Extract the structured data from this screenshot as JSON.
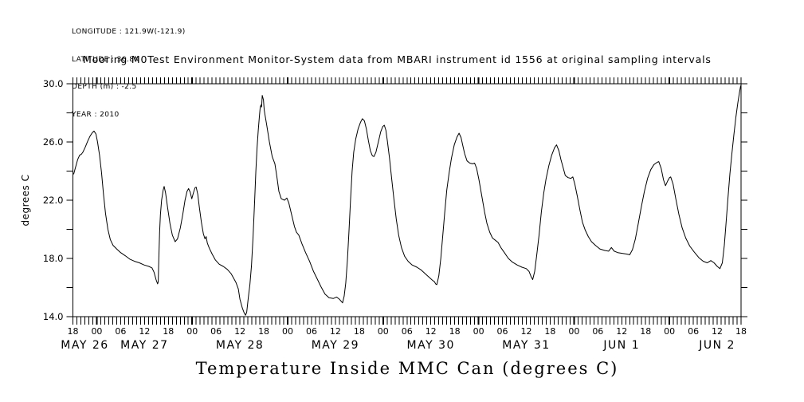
{
  "page": {
    "background": "#ffffff",
    "ink": "#000000"
  },
  "header": {
    "lines": [
      "LONGITUDE : 121.9W(-121.9)",
      "LATITUDE : 36.8N",
      "DEPTH (m) : -2.5",
      "YEAR : 2010"
    ]
  },
  "subtitle": "Mooring M0Test Environment Monitor-System data from MBARI instrument id 1556 at original sampling intervals",
  "bottom_title": "Temperature Inside MMC Can (degrees C)",
  "chart_data": {
    "type": "line",
    "title": "Temperature Inside MMC Can (degrees C)",
    "xlabel": "",
    "ylabel": "degrees C",
    "grid": false,
    "legend": "none",
    "line_color": "#000000",
    "x_axis": {
      "start": "2010-05-26 18:00",
      "end": "2010-06-02 18:00",
      "hours_total": 168,
      "minor_tick_hours": 1,
      "labeled_tick_hours": 6,
      "bold_tick_at_midnight": true,
      "hour_labels": [
        "18",
        "00",
        "06",
        "12",
        "18",
        "00",
        "06",
        "12",
        "18",
        "00",
        "06",
        "12",
        "18",
        "00",
        "06",
        "12",
        "18",
        "00",
        "06",
        "12",
        "18",
        "00",
        "06",
        "12",
        "18",
        "00",
        "06",
        "12",
        "18"
      ],
      "date_labels": [
        {
          "label": "MAY 26",
          "t_hours": 3
        },
        {
          "label": "MAY 27",
          "t_hours": 18
        },
        {
          "label": "MAY 28",
          "t_hours": 42
        },
        {
          "label": "MAY 29",
          "t_hours": 66
        },
        {
          "label": "MAY 30",
          "t_hours": 90
        },
        {
          "label": "MAY 31",
          "t_hours": 114
        },
        {
          "label": "JUN  1",
          "t_hours": 138
        },
        {
          "label": "JUN  2",
          "t_hours": 162
        }
      ]
    },
    "y_axis": {
      "label": "degrees C",
      "min": 14.0,
      "max": 30.0,
      "minor_tick": 2.0,
      "major_tick": 4.0,
      "tick_labels": [
        {
          "label": "14.0",
          "value": 14
        },
        {
          "label": "18.0",
          "value": 18
        },
        {
          "label": "22.0",
          "value": 22
        },
        {
          "label": "26.0",
          "value": 26
        },
        {
          "label": "30.0",
          "value": 30
        }
      ]
    },
    "series": [
      {
        "name": "temperature_inside_MMC_can_degC",
        "x_unit": "hours since 2010-05-26 18:00",
        "points": [
          [
            0.2,
            23.8
          ],
          [
            0.7,
            24.3
          ],
          [
            1.2,
            24.8
          ],
          [
            1.7,
            25.1
          ],
          [
            2.1,
            25.15
          ],
          [
            2.5,
            25.3
          ],
          [
            3.1,
            25.65
          ],
          [
            3.7,
            26.05
          ],
          [
            4.3,
            26.4
          ],
          [
            4.9,
            26.65
          ],
          [
            5.3,
            26.75
          ],
          [
            5.8,
            26.55
          ],
          [
            6.2,
            26.0
          ],
          [
            6.7,
            25.1
          ],
          [
            7.2,
            23.9
          ],
          [
            7.7,
            22.4
          ],
          [
            8.2,
            21.1
          ],
          [
            8.8,
            20.0
          ],
          [
            9.4,
            19.3
          ],
          [
            10.1,
            18.9
          ],
          [
            11.0,
            18.65
          ],
          [
            12.0,
            18.4
          ],
          [
            13.1,
            18.2
          ],
          [
            14.3,
            17.95
          ],
          [
            15.5,
            17.8
          ],
          [
            16.7,
            17.7
          ],
          [
            17.9,
            17.55
          ],
          [
            19.1,
            17.45
          ],
          [
            19.9,
            17.35
          ],
          [
            20.4,
            17.05
          ],
          [
            20.9,
            16.55
          ],
          [
            21.3,
            16.25
          ],
          [
            21.45,
            16.4
          ],
          [
            21.6,
            18.0
          ],
          [
            21.8,
            19.8
          ],
          [
            22.0,
            21.0
          ],
          [
            22.3,
            22.0
          ],
          [
            22.7,
            22.7
          ],
          [
            22.95,
            22.95
          ],
          [
            23.3,
            22.5
          ],
          [
            23.8,
            21.5
          ],
          [
            24.4,
            20.4
          ],
          [
            25.0,
            19.6
          ],
          [
            25.7,
            19.15
          ],
          [
            26.3,
            19.35
          ],
          [
            27.0,
            20.1
          ],
          [
            27.6,
            21.0
          ],
          [
            28.2,
            22.0
          ],
          [
            28.7,
            22.6
          ],
          [
            29.1,
            22.8
          ],
          [
            29.5,
            22.55
          ],
          [
            29.9,
            22.1
          ],
          [
            30.3,
            22.5
          ],
          [
            30.7,
            22.85
          ],
          [
            31.0,
            22.9
          ],
          [
            31.4,
            22.4
          ],
          [
            31.8,
            21.5
          ],
          [
            32.3,
            20.5
          ],
          [
            32.8,
            19.7
          ],
          [
            33.2,
            19.35
          ],
          [
            33.5,
            19.5
          ],
          [
            33.8,
            19.05
          ],
          [
            34.3,
            18.7
          ],
          [
            35.0,
            18.3
          ],
          [
            35.8,
            17.9
          ],
          [
            36.8,
            17.6
          ],
          [
            37.8,
            17.45
          ],
          [
            38.8,
            17.25
          ],
          [
            39.8,
            16.95
          ],
          [
            40.5,
            16.6
          ],
          [
            41.0,
            16.35
          ],
          [
            41.6,
            15.9
          ],
          [
            42.0,
            15.2
          ],
          [
            42.6,
            14.6
          ],
          [
            43.0,
            14.3
          ],
          [
            43.4,
            14.1
          ],
          [
            43.7,
            14.3
          ],
          [
            44.1,
            15.3
          ],
          [
            44.5,
            16.2
          ],
          [
            44.9,
            17.5
          ],
          [
            45.3,
            19.5
          ],
          [
            45.7,
            22.0
          ],
          [
            46.0,
            24.0
          ],
          [
            46.3,
            25.6
          ],
          [
            46.6,
            26.8
          ],
          [
            46.9,
            27.8
          ],
          [
            47.1,
            28.4
          ],
          [
            47.3,
            28.55
          ],
          [
            47.45,
            28.4
          ],
          [
            47.6,
            29.2
          ],
          [
            47.9,
            28.9
          ],
          [
            48.1,
            28.2
          ],
          [
            48.3,
            27.85
          ],
          [
            48.7,
            27.2
          ],
          [
            49.4,
            26.0
          ],
          [
            50.1,
            25.0
          ],
          [
            50.8,
            24.5
          ],
          [
            51.3,
            23.6
          ],
          [
            51.8,
            22.6
          ],
          [
            52.4,
            22.1
          ],
          [
            53.2,
            22.0
          ],
          [
            53.8,
            22.15
          ],
          [
            54.3,
            21.8
          ],
          [
            55.0,
            21.0
          ],
          [
            55.7,
            20.2
          ],
          [
            56.2,
            19.8
          ],
          [
            56.8,
            19.6
          ],
          [
            57.6,
            19.0
          ],
          [
            58.5,
            18.4
          ],
          [
            59.5,
            17.8
          ],
          [
            60.5,
            17.1
          ],
          [
            61.4,
            16.6
          ],
          [
            62.4,
            16.05
          ],
          [
            63.4,
            15.55
          ],
          [
            64.4,
            15.3
          ],
          [
            65.5,
            15.25
          ],
          [
            66.3,
            15.35
          ],
          [
            67.0,
            15.2
          ],
          [
            67.8,
            14.95
          ],
          [
            68.2,
            15.4
          ],
          [
            68.6,
            16.3
          ],
          [
            69.0,
            17.8
          ],
          [
            69.4,
            19.8
          ],
          [
            69.8,
            22.0
          ],
          [
            70.2,
            24.0
          ],
          [
            70.6,
            25.3
          ],
          [
            71.1,
            26.2
          ],
          [
            71.7,
            26.9
          ],
          [
            72.3,
            27.35
          ],
          [
            72.8,
            27.6
          ],
          [
            73.3,
            27.45
          ],
          [
            73.8,
            26.9
          ],
          [
            74.3,
            26.1
          ],
          [
            74.8,
            25.4
          ],
          [
            75.3,
            25.05
          ],
          [
            75.7,
            25.0
          ],
          [
            76.2,
            25.3
          ],
          [
            76.8,
            26.0
          ],
          [
            77.4,
            26.7
          ],
          [
            77.9,
            27.05
          ],
          [
            78.3,
            27.15
          ],
          [
            78.7,
            26.8
          ],
          [
            79.1,
            26.0
          ],
          [
            79.6,
            24.9
          ],
          [
            80.1,
            23.6
          ],
          [
            80.7,
            22.1
          ],
          [
            81.3,
            20.7
          ],
          [
            81.9,
            19.6
          ],
          [
            82.6,
            18.75
          ],
          [
            83.4,
            18.15
          ],
          [
            84.3,
            17.8
          ],
          [
            85.3,
            17.55
          ],
          [
            86.5,
            17.4
          ],
          [
            87.6,
            17.2
          ],
          [
            88.6,
            16.95
          ],
          [
            89.6,
            16.7
          ],
          [
            90.4,
            16.5
          ],
          [
            90.9,
            16.4
          ],
          [
            91.2,
            16.25
          ],
          [
            91.5,
            16.2
          ],
          [
            92.0,
            16.8
          ],
          [
            92.5,
            18.0
          ],
          [
            93.0,
            19.6
          ],
          [
            93.5,
            21.2
          ],
          [
            94.0,
            22.7
          ],
          [
            94.6,
            23.9
          ],
          [
            95.2,
            24.9
          ],
          [
            95.9,
            25.8
          ],
          [
            96.6,
            26.35
          ],
          [
            97.1,
            26.6
          ],
          [
            97.6,
            26.3
          ],
          [
            98.0,
            25.8
          ],
          [
            98.5,
            25.2
          ],
          [
            99.1,
            24.7
          ],
          [
            99.8,
            24.55
          ],
          [
            100.5,
            24.5
          ],
          [
            101.0,
            24.55
          ],
          [
            101.5,
            24.2
          ],
          [
            102.1,
            23.4
          ],
          [
            102.8,
            22.3
          ],
          [
            103.5,
            21.2
          ],
          [
            104.1,
            20.4
          ],
          [
            104.8,
            19.8
          ],
          [
            105.5,
            19.4
          ],
          [
            106.2,
            19.25
          ],
          [
            106.9,
            19.1
          ],
          [
            107.6,
            18.75
          ],
          [
            108.5,
            18.4
          ],
          [
            109.5,
            18.0
          ],
          [
            110.5,
            17.75
          ],
          [
            111.7,
            17.55
          ],
          [
            112.9,
            17.4
          ],
          [
            114.0,
            17.3
          ],
          [
            114.7,
            17.1
          ],
          [
            115.2,
            16.75
          ],
          [
            115.6,
            16.55
          ],
          [
            116.1,
            17.1
          ],
          [
            116.6,
            18.2
          ],
          [
            117.2,
            19.6
          ],
          [
            117.8,
            21.2
          ],
          [
            118.4,
            22.5
          ],
          [
            119.0,
            23.5
          ],
          [
            119.7,
            24.4
          ],
          [
            120.4,
            25.1
          ],
          [
            121.1,
            25.6
          ],
          [
            121.6,
            25.8
          ],
          [
            122.2,
            25.4
          ],
          [
            122.7,
            24.8
          ],
          [
            123.2,
            24.3
          ],
          [
            123.8,
            23.7
          ],
          [
            124.5,
            23.55
          ],
          [
            125.2,
            23.5
          ],
          [
            125.7,
            23.6
          ],
          [
            126.2,
            23.1
          ],
          [
            126.8,
            22.3
          ],
          [
            127.5,
            21.3
          ],
          [
            128.1,
            20.5
          ],
          [
            128.8,
            19.95
          ],
          [
            129.6,
            19.5
          ],
          [
            130.4,
            19.15
          ],
          [
            131.4,
            18.9
          ],
          [
            132.5,
            18.65
          ],
          [
            133.7,
            18.55
          ],
          [
            134.7,
            18.5
          ],
          [
            135.4,
            18.75
          ],
          [
            136.1,
            18.5
          ],
          [
            137.0,
            18.4
          ],
          [
            138.1,
            18.35
          ],
          [
            139.2,
            18.3
          ],
          [
            140.0,
            18.25
          ],
          [
            140.7,
            18.6
          ],
          [
            141.4,
            19.3
          ],
          [
            142.1,
            20.3
          ],
          [
            142.9,
            21.5
          ],
          [
            143.7,
            22.6
          ],
          [
            144.5,
            23.5
          ],
          [
            145.3,
            24.1
          ],
          [
            146.1,
            24.45
          ],
          [
            146.9,
            24.6
          ],
          [
            147.3,
            24.65
          ],
          [
            147.9,
            24.2
          ],
          [
            148.5,
            23.4
          ],
          [
            149.0,
            23.0
          ],
          [
            149.5,
            23.3
          ],
          [
            150.0,
            23.55
          ],
          [
            150.3,
            23.6
          ],
          [
            150.9,
            23.1
          ],
          [
            151.6,
            22.1
          ],
          [
            152.4,
            21.0
          ],
          [
            153.2,
            20.1
          ],
          [
            154.1,
            19.4
          ],
          [
            155.1,
            18.85
          ],
          [
            156.2,
            18.45
          ],
          [
            157.4,
            18.05
          ],
          [
            158.5,
            17.8
          ],
          [
            159.5,
            17.7
          ],
          [
            160.4,
            17.85
          ],
          [
            161.2,
            17.7
          ],
          [
            162.0,
            17.45
          ],
          [
            162.7,
            17.3
          ],
          [
            163.3,
            17.7
          ],
          [
            163.8,
            18.9
          ],
          [
            164.2,
            20.3
          ],
          [
            164.7,
            22.1
          ],
          [
            165.2,
            23.8
          ],
          [
            165.7,
            25.2
          ],
          [
            166.2,
            26.5
          ],
          [
            166.7,
            27.7
          ],
          [
            167.2,
            28.7
          ],
          [
            167.6,
            29.4
          ],
          [
            167.9,
            29.85
          ]
        ]
      }
    ]
  }
}
